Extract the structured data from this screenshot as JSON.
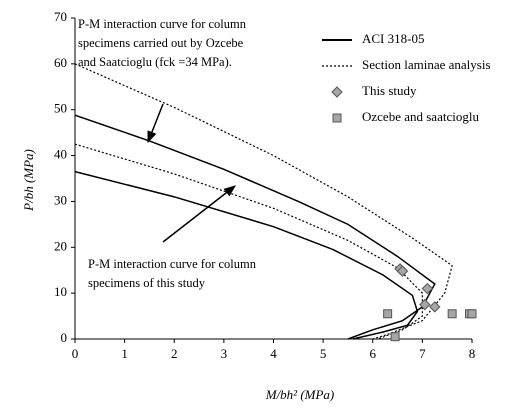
{
  "chart_data": {
    "type": "line",
    "xlabel": "M/bh² (MPa)",
    "ylabel": "P/bh (MPa)",
    "xlim": [
      0,
      8
    ],
    "xticks": [
      0,
      1,
      2,
      3,
      4,
      5,
      6,
      7,
      8
    ],
    "ylim": [
      0,
      70
    ],
    "yticks": [
      0,
      10,
      20,
      30,
      40,
      50,
      60,
      70
    ],
    "annotations": [
      [
        "P-M interaction curve for column",
        "specimens carried out by Ozcebe",
        "and Saatcioglu (fck =34 MPa)."
      ],
      [
        "P-M interaction curve for column",
        "specimens of this study"
      ]
    ],
    "series": [
      {
        "name": "ACI 318-05",
        "style": "solid",
        "color": "#000000",
        "x": [
          0,
          1.5,
          3,
          4.5,
          5.5,
          6.5,
          7.25,
          7.0,
          6.6,
          6.0,
          5.5,
          null,
          0,
          2,
          4,
          5.2,
          6.2,
          6.8,
          6.9,
          6.7,
          6.2,
          5.6
        ],
        "values": [
          48.8,
          43.2,
          37,
          30,
          25,
          18,
          12,
          7,
          4,
          2,
          0,
          null,
          36.5,
          31,
          24.5,
          19.5,
          14,
          9.5,
          6,
          3,
          1.5,
          0
        ]
      },
      {
        "name": "Section laminae analysis",
        "style": "dotted",
        "color": "#000000",
        "x": [
          0,
          2,
          4,
          5.5,
          6.8,
          7.6,
          7.45,
          7.0,
          6.3,
          6.0,
          null,
          0,
          2,
          4,
          5.5,
          6.5,
          7.0,
          7.0,
          6.6,
          6.1
        ],
        "values": [
          60,
          50.5,
          40,
          31,
          22,
          16,
          10,
          4,
          1,
          0,
          null,
          42.5,
          36,
          28.5,
          21.5,
          15.5,
          10,
          5,
          2,
          0
        ]
      },
      {
        "name": "This study",
        "style": "diamond",
        "color": "#a6a6a6",
        "x": [
          6.55,
          6.6,
          7.1,
          7.05,
          7.25
        ],
        "values": [
          15.3,
          14.8,
          11,
          7.5,
          7
        ]
      },
      {
        "name": "Ozcebe and saatcioglu",
        "style": "square",
        "color": "#a6a6a6",
        "x": [
          6.3,
          6.45,
          7.6,
          7.95,
          8.0
        ],
        "values": [
          5.5,
          0.5,
          5.5,
          5.5,
          5.5
        ]
      }
    ]
  }
}
